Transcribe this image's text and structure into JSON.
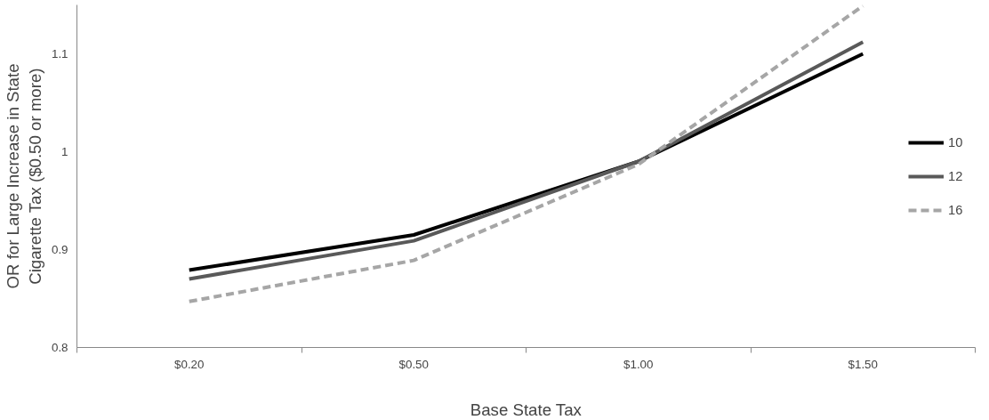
{
  "chart_data": {
    "type": "line",
    "xlabel": "Base State Tax",
    "ylabel": "OR for Large Increase in State Cigarette Tax ($0.50 or more)",
    "categories": [
      "$0.20",
      "$0.50",
      "$1.00",
      "$1.50"
    ],
    "series": [
      {
        "name": "10",
        "color": "#000000",
        "line_style": "solid",
        "values": [
          0.879,
          0.915,
          0.99,
          1.1
        ]
      },
      {
        "name": "12",
        "color": "#595959",
        "line_style": "solid",
        "values": [
          0.87,
          0.909,
          0.99,
          1.112
        ]
      },
      {
        "name": "16",
        "color": "#a6a6a6",
        "line_style": "dashed",
        "values": [
          0.847,
          0.889,
          0.987,
          1.149
        ]
      }
    ],
    "ylim": [
      0.8,
      1.15
    ],
    "yticks": [
      0.8,
      0.9,
      1,
      1.1
    ],
    "grid": false,
    "legend": "right",
    "marker": "none"
  }
}
